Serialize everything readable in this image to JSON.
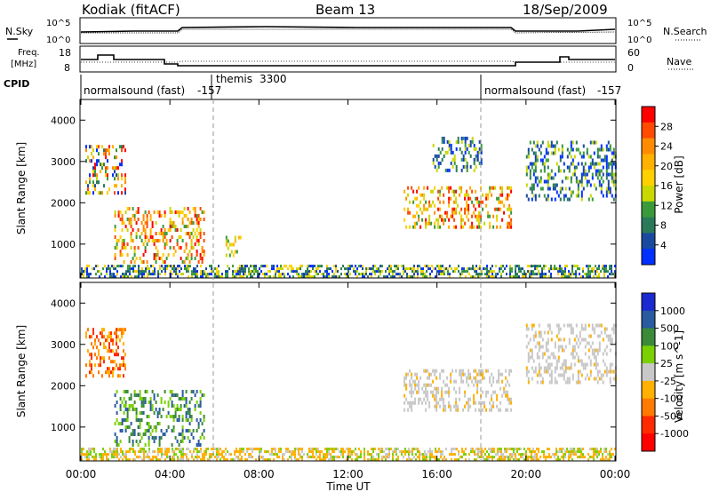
{
  "header": {
    "station": "Kodiak (fitACF)",
    "beam": "Beam 13",
    "date": "18/Sep/2009"
  },
  "strip": {
    "nsky_label": "N.Sky",
    "nsearch_label": "N.Search",
    "noise_ticks": [
      "10^5",
      "10^0"
    ],
    "freq_label": [
      "Freq.",
      "[MHz]"
    ],
    "freq_ticks": [
      "18",
      "8"
    ],
    "nave_label": "Nave",
    "nave_ticks": [
      "60",
      "0"
    ],
    "cpid_label": "CPID",
    "cpid_segments": [
      {
        "label": "normalsound (fast)",
        "id": "-157"
      },
      {
        "label": "themis",
        "id": "3300"
      },
      {
        "label": "normalsound (fast)",
        "id": "-157"
      }
    ]
  },
  "chart_data": [
    {
      "type": "heatmap",
      "name": "power",
      "xlabel": "",
      "ylabel": "Slant Range [km]",
      "x_ticks": [
        "00:00",
        "04:00",
        "08:00",
        "12:00",
        "16:00",
        "20:00",
        "00:00"
      ],
      "x_range_hours": [
        0,
        24
      ],
      "y_ticks": [
        1000,
        2000,
        3000,
        4000
      ],
      "ylim": [
        180,
        4500
      ],
      "colorbar": {
        "label": "Power [dB]",
        "ticks": [
          "28",
          "24",
          "20",
          "16",
          "12",
          "8",
          "4"
        ],
        "colors": [
          "#ff0000",
          "#ff4a00",
          "#ff8c00",
          "#ffb000",
          "#ffd000",
          "#c8d800",
          "#3a9a3a",
          "#2a7a5a",
          "#1a4aa0",
          "#0030ff"
        ]
      },
      "echo_regions": [
        {
          "t": [
            0.2,
            2.0
          ],
          "range": [
            2200,
            3400
          ],
          "level": "mixed"
        },
        {
          "t": [
            1.5,
            5.5
          ],
          "range": [
            600,
            1900
          ],
          "level": "high"
        },
        {
          "t": [
            6.5,
            7.2
          ],
          "range": [
            700,
            1200
          ],
          "level": "medium"
        },
        {
          "t": [
            14.5,
            19.3
          ],
          "range": [
            1400,
            2400
          ],
          "level": "high"
        },
        {
          "t": [
            15.8,
            18.0
          ],
          "range": [
            2800,
            3600
          ],
          "level": "low"
        },
        {
          "t": [
            20.0,
            24.0
          ],
          "range": [
            2100,
            3500
          ],
          "level": "low"
        },
        {
          "t": [
            0,
            24
          ],
          "range": [
            200,
            500
          ],
          "level": "ground"
        }
      ]
    },
    {
      "type": "heatmap",
      "name": "velocity",
      "xlabel": "Time UT",
      "ylabel": "Slant Range [km]",
      "x_ticks": [
        "00:00",
        "04:00",
        "08:00",
        "12:00",
        "16:00",
        "20:00",
        "00:00"
      ],
      "x_range_hours": [
        0,
        24
      ],
      "y_ticks": [
        1000,
        2000,
        3000,
        4000
      ],
      "ylim": [
        180,
        4500
      ],
      "colorbar": {
        "label": "Velocity [m s^-1]",
        "ticks": [
          "1000",
          "500",
          "100",
          "25",
          "-25",
          "-100",
          "-500",
          "-1000"
        ],
        "colors": [
          "#1a2ad0",
          "#2a5aa0",
          "#3a8a3a",
          "#7ad000",
          "#c8c8c8",
          "#ffb000",
          "#ff7a00",
          "#ff2a00",
          "#ff0000"
        ]
      },
      "echo_regions": [
        {
          "t": [
            0.2,
            2.0
          ],
          "range": [
            2200,
            3400
          ],
          "level": "away"
        },
        {
          "t": [
            1.5,
            5.5
          ],
          "range": [
            600,
            1900
          ],
          "level": "toward"
        },
        {
          "t": [
            14.5,
            19.3
          ],
          "range": [
            1400,
            2400
          ],
          "level": "ground-scatter"
        },
        {
          "t": [
            20.0,
            24.0
          ],
          "range": [
            2100,
            3500
          ],
          "level": "ground-scatter"
        },
        {
          "t": [
            0,
            24
          ],
          "range": [
            200,
            500
          ],
          "level": "ground"
        }
      ]
    }
  ]
}
